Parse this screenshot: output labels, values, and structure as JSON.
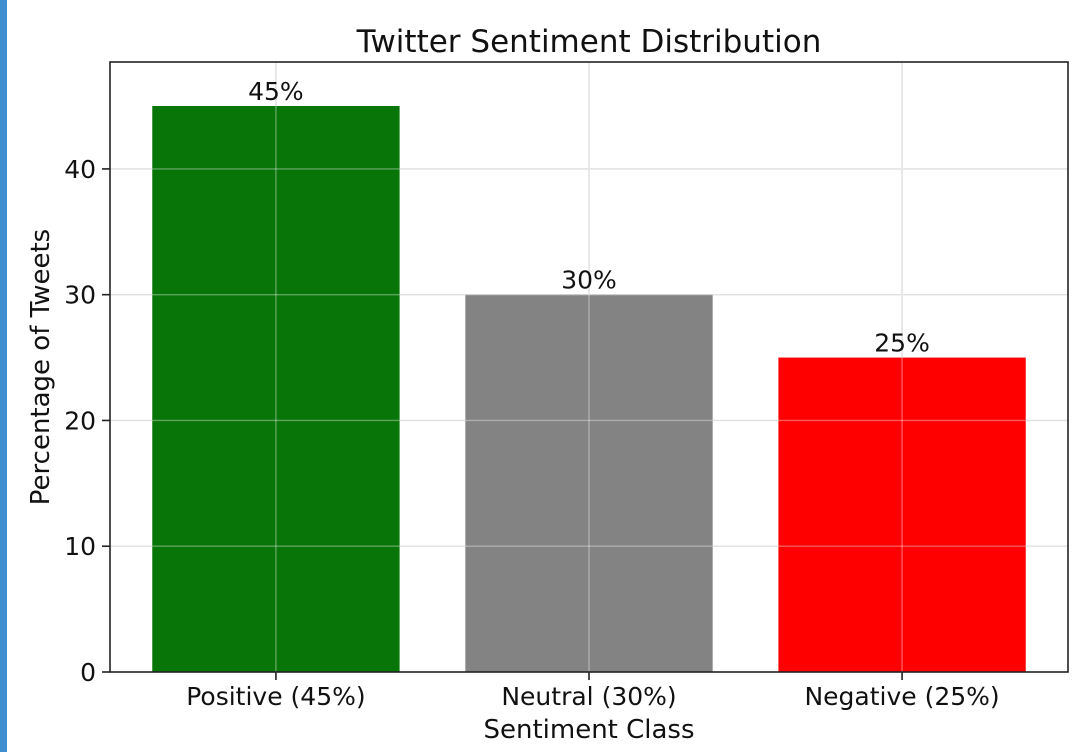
{
  "chart_data": {
    "type": "bar",
    "title": "Twitter Sentiment Distribution",
    "xlabel": "Sentiment Class",
    "ylabel": "Percentage of Tweets",
    "categories": [
      "Positive (45%)",
      "Neutral (30%)",
      "Negative (25%)"
    ],
    "values": [
      45,
      30,
      25
    ],
    "data_labels": [
      "45%",
      "30%",
      "25%"
    ],
    "colors": [
      "#077507",
      "#838383",
      "#fe0000"
    ],
    "ylim": [
      0,
      48.5
    ],
    "yticks": [
      0,
      10,
      20,
      30,
      40
    ],
    "grid": true,
    "legend": "none"
  },
  "accent": {
    "left_strip_color": "#3f8fd0"
  }
}
